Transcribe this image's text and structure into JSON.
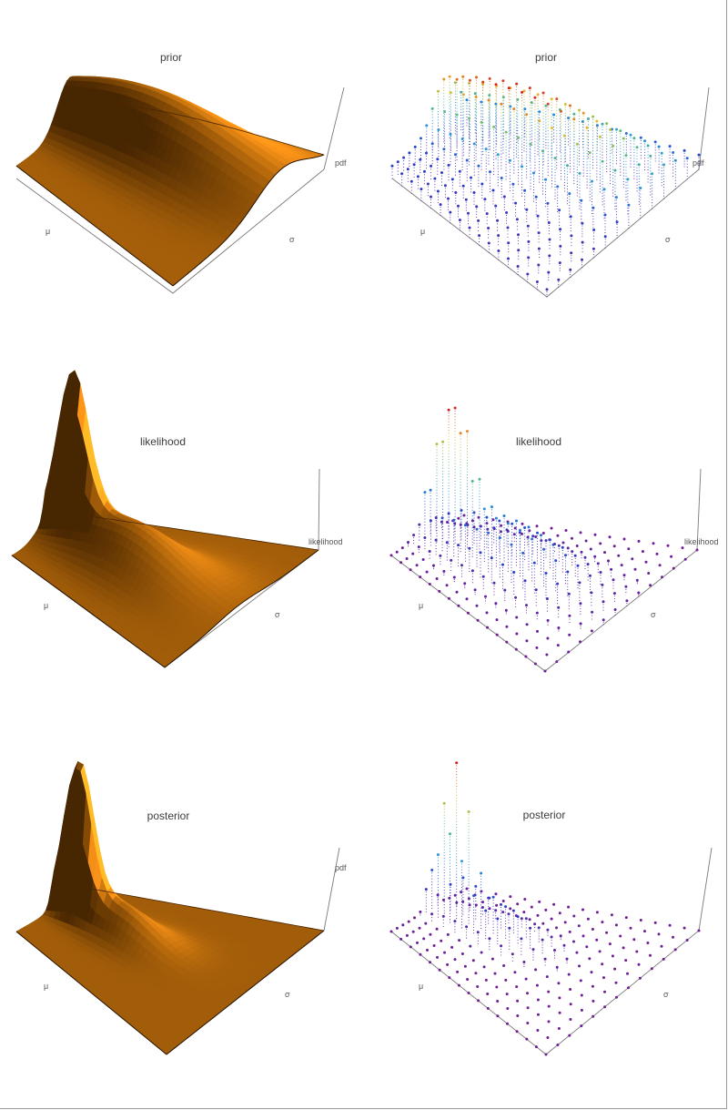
{
  "panels": [
    {
      "id": "prior-surface",
      "title": "prior",
      "zlabel": "pdf"
    },
    {
      "id": "prior-dots",
      "title": "prior",
      "zlabel": "pdf"
    },
    {
      "id": "likelihood-surface",
      "title": "likelihood",
      "zlabel": "likelihood"
    },
    {
      "id": "likelihood-dots",
      "title": "likelihood",
      "zlabel": "likelihood"
    },
    {
      "id": "posterior-surface",
      "title": "posterior",
      "zlabel": "pdf"
    },
    {
      "id": "posterior-dots",
      "title": "posterior",
      "zlabel": ""
    }
  ],
  "axis_labels": {
    "x": "μ",
    "y": "σ"
  },
  "colors": {
    "surface_dark": "#8a4600",
    "surface_mid": "#f08c00",
    "surface_light": "#ffd050",
    "frame": "#9a9a9a"
  },
  "chart_data": [
    {
      "type": "surface",
      "title": "prior",
      "xlabel": "μ",
      "ylabel": "σ",
      "zlabel": "pdf",
      "peaks": [
        {
          "mu": 0.28,
          "sigma": 0.35,
          "height": 0.62,
          "mu_width": 0.17,
          "sigma_width": 0.5
        }
      ],
      "base": 0.07,
      "baseline_tilt": 0.05
    },
    {
      "type": "scatter3d",
      "title": "prior",
      "xlabel": "μ",
      "ylabel": "σ",
      "zlabel": "pdf",
      "grid": [
        13,
        16
      ],
      "peaks": [
        {
          "mu": 0.28,
          "sigma": 0.35,
          "height": 0.62,
          "mu_width": 0.17,
          "sigma_width": 0.5
        }
      ],
      "base": 0.07,
      "baseline_tilt": 0.05
    },
    {
      "type": "surface",
      "title": "likelihood",
      "xlabel": "μ",
      "ylabel": "σ",
      "zlabel": "likelihood",
      "peaks": [
        {
          "mu": 0.5,
          "sigma": 0.13,
          "height": 0.98,
          "mu_width": 0.05,
          "sigma_width": 0.08
        },
        {
          "mu": 0.52,
          "sigma": 0.42,
          "height": 0.32,
          "mu_width": 0.15,
          "sigma_width": 0.28
        }
      ],
      "base": 0.0,
      "baseline_tilt": 0.0
    },
    {
      "type": "scatter3d",
      "title": "likelihood",
      "xlabel": "μ",
      "ylabel": "σ",
      "zlabel": "likelihood",
      "grid": [
        13,
        16
      ],
      "peaks": [
        {
          "mu": 0.5,
          "sigma": 0.13,
          "height": 0.98,
          "mu_width": 0.05,
          "sigma_width": 0.08
        },
        {
          "mu": 0.52,
          "sigma": 0.42,
          "height": 0.32,
          "mu_width": 0.15,
          "sigma_width": 0.28
        }
      ],
      "base": 0.0,
      "baseline_tilt": 0.0
    },
    {
      "type": "surface",
      "title": "posterior",
      "xlabel": "μ",
      "ylabel": "σ",
      "zlabel": "pdf",
      "peaks": [
        {
          "mu": 0.48,
          "sigma": 0.12,
          "height": 0.98,
          "mu_width": 0.05,
          "sigma_width": 0.07
        },
        {
          "mu": 0.47,
          "sigma": 0.32,
          "height": 0.22,
          "mu_width": 0.1,
          "sigma_width": 0.18
        }
      ],
      "base": 0.0,
      "baseline_tilt": 0.0
    },
    {
      "type": "scatter3d",
      "title": "posterior",
      "xlabel": "μ",
      "ylabel": "σ",
      "zlabel": "",
      "grid": [
        13,
        16
      ],
      "peaks": [
        {
          "mu": 0.48,
          "sigma": 0.12,
          "height": 0.98,
          "mu_width": 0.05,
          "sigma_width": 0.07
        },
        {
          "mu": 0.47,
          "sigma": 0.32,
          "height": 0.22,
          "mu_width": 0.1,
          "sigma_width": 0.18
        }
      ],
      "base": 0.0,
      "baseline_tilt": 0.0
    }
  ]
}
